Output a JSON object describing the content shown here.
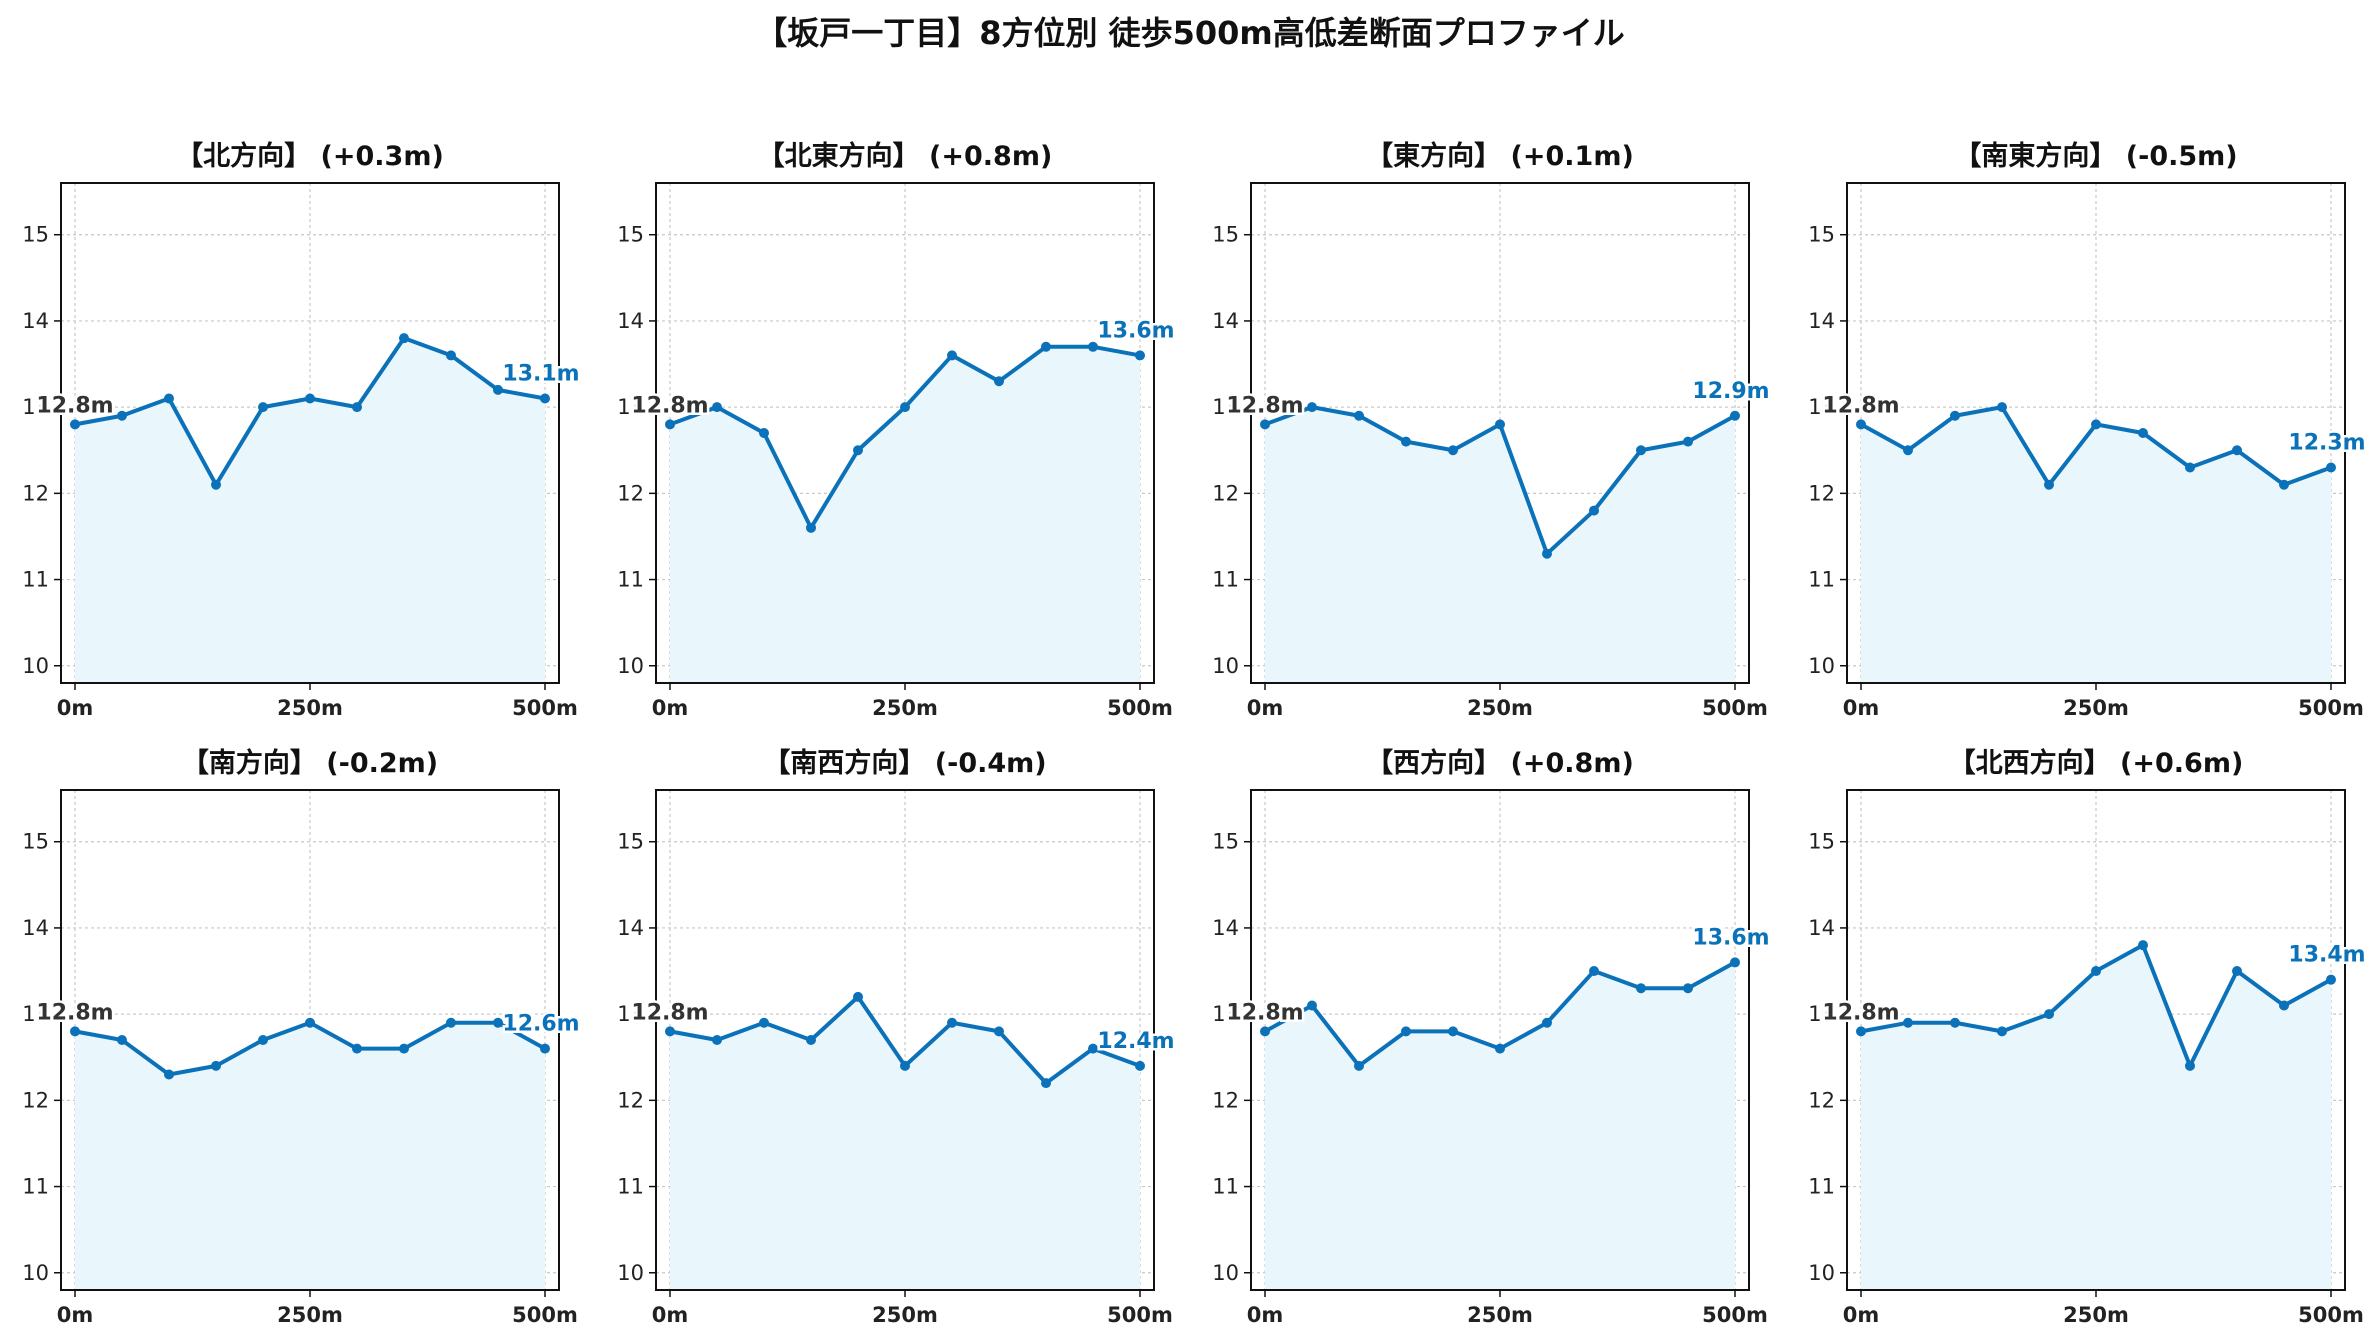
{
  "figure": {
    "title": "【坂戸一丁目】8方位別 徒歩500m高低差断面プロファイル",
    "line_color": "#0b72b9",
    "fill_color": "#e9f6fc",
    "grid_color": "#c8c8c8"
  },
  "chart_data": [
    {
      "type": "line",
      "title": "【北方向】 (+0.3m)",
      "x": [
        0,
        50,
        100,
        150,
        200,
        250,
        300,
        350,
        400,
        450,
        500
      ],
      "y": [
        12.8,
        12.9,
        13.1,
        12.1,
        13.0,
        13.1,
        13.0,
        13.8,
        13.6,
        13.2,
        13.1
      ],
      "start_label": "12.8m",
      "end_label": "13.1m",
      "xlim": [
        0,
        500
      ],
      "ylim": [
        9.8,
        15.6
      ],
      "yticks": [
        10,
        11,
        12,
        13,
        14,
        15
      ],
      "xticks": [
        0,
        250,
        500
      ],
      "xtick_labels": [
        "0m",
        "250m",
        "500m"
      ],
      "grid": true
    },
    {
      "type": "line",
      "title": "【北東方向】 (+0.8m)",
      "x": [
        0,
        50,
        100,
        150,
        200,
        250,
        300,
        350,
        400,
        450,
        500
      ],
      "y": [
        12.8,
        13.0,
        12.7,
        11.6,
        12.5,
        13.0,
        13.6,
        13.3,
        13.7,
        13.7,
        13.6
      ],
      "start_label": "12.8m",
      "end_label": "13.6m",
      "xlim": [
        0,
        500
      ],
      "ylim": [
        9.8,
        15.6
      ],
      "yticks": [
        10,
        11,
        12,
        13,
        14,
        15
      ],
      "xticks": [
        0,
        250,
        500
      ],
      "xtick_labels": [
        "0m",
        "250m",
        "500m"
      ],
      "grid": true
    },
    {
      "type": "line",
      "title": "【東方向】 (+0.1m)",
      "x": [
        0,
        50,
        100,
        150,
        200,
        250,
        300,
        350,
        400,
        450,
        500
      ],
      "y": [
        12.8,
        13.0,
        12.9,
        12.6,
        12.5,
        12.8,
        11.3,
        11.8,
        12.5,
        12.6,
        12.9
      ],
      "start_label": "12.8m",
      "end_label": "12.9m",
      "xlim": [
        0,
        500
      ],
      "ylim": [
        9.8,
        15.6
      ],
      "yticks": [
        10,
        11,
        12,
        13,
        14,
        15
      ],
      "xticks": [
        0,
        250,
        500
      ],
      "xtick_labels": [
        "0m",
        "250m",
        "500m"
      ],
      "grid": true
    },
    {
      "type": "line",
      "title": "【南東方向】 (-0.5m)",
      "x": [
        0,
        50,
        100,
        150,
        200,
        250,
        300,
        350,
        400,
        450,
        500
      ],
      "y": [
        12.8,
        12.5,
        12.9,
        13.0,
        12.1,
        12.8,
        12.7,
        12.3,
        12.5,
        12.1,
        12.3
      ],
      "start_label": "12.8m",
      "end_label": "12.3m",
      "xlim": [
        0,
        500
      ],
      "ylim": [
        9.8,
        15.6
      ],
      "yticks": [
        10,
        11,
        12,
        13,
        14,
        15
      ],
      "xticks": [
        0,
        250,
        500
      ],
      "xtick_labels": [
        "0m",
        "250m",
        "500m"
      ],
      "grid": true
    },
    {
      "type": "line",
      "title": "【南方向】 (-0.2m)",
      "x": [
        0,
        50,
        100,
        150,
        200,
        250,
        300,
        350,
        400,
        450,
        500
      ],
      "y": [
        12.8,
        12.7,
        12.3,
        12.4,
        12.7,
        12.9,
        12.6,
        12.6,
        12.9,
        12.9,
        12.6
      ],
      "start_label": "12.8m",
      "end_label": "12.6m",
      "xlim": [
        0,
        500
      ],
      "ylim": [
        9.8,
        15.6
      ],
      "yticks": [
        10,
        11,
        12,
        13,
        14,
        15
      ],
      "xticks": [
        0,
        250,
        500
      ],
      "xtick_labels": [
        "0m",
        "250m",
        "500m"
      ],
      "grid": true
    },
    {
      "type": "line",
      "title": "【南西方向】 (-0.4m)",
      "x": [
        0,
        50,
        100,
        150,
        200,
        250,
        300,
        350,
        400,
        450,
        500
      ],
      "y": [
        12.8,
        12.7,
        12.9,
        12.7,
        13.2,
        12.4,
        12.9,
        12.8,
        12.2,
        12.6,
        12.4
      ],
      "start_label": "12.8m",
      "end_label": "12.4m",
      "xlim": [
        0,
        500
      ],
      "ylim": [
        9.8,
        15.6
      ],
      "yticks": [
        10,
        11,
        12,
        13,
        14,
        15
      ],
      "xticks": [
        0,
        250,
        500
      ],
      "xtick_labels": [
        "0m",
        "250m",
        "500m"
      ],
      "grid": true
    },
    {
      "type": "line",
      "title": "【西方向】 (+0.8m)",
      "x": [
        0,
        50,
        100,
        150,
        200,
        250,
        300,
        350,
        400,
        450,
        500
      ],
      "y": [
        12.8,
        13.1,
        12.4,
        12.8,
        12.8,
        12.6,
        12.9,
        13.5,
        13.3,
        13.3,
        13.6
      ],
      "start_label": "12.8m",
      "end_label": "13.6m",
      "xlim": [
        0,
        500
      ],
      "ylim": [
        9.8,
        15.6
      ],
      "yticks": [
        10,
        11,
        12,
        13,
        14,
        15
      ],
      "xticks": [
        0,
        250,
        500
      ],
      "xtick_labels": [
        "0m",
        "250m",
        "500m"
      ],
      "grid": true
    },
    {
      "type": "line",
      "title": "【北西方向】 (+0.6m)",
      "x": [
        0,
        50,
        100,
        150,
        200,
        250,
        300,
        350,
        400,
        450,
        500
      ],
      "y": [
        12.8,
        12.9,
        12.9,
        12.8,
        13.0,
        13.5,
        13.8,
        12.4,
        13.5,
        13.1,
        13.4
      ],
      "start_label": "12.8m",
      "end_label": "13.4m",
      "xlim": [
        0,
        500
      ],
      "ylim": [
        9.8,
        15.6
      ],
      "yticks": [
        10,
        11,
        12,
        13,
        14,
        15
      ],
      "xticks": [
        0,
        250,
        500
      ],
      "xtick_labels": [
        "0m",
        "250m",
        "500m"
      ],
      "grid": true
    }
  ]
}
